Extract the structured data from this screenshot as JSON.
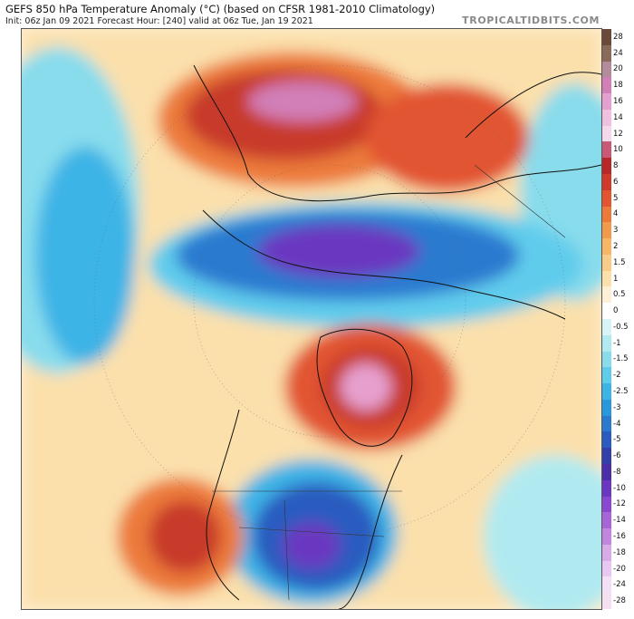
{
  "header": {
    "title": "GEFS 850 hPa Temperature Anomaly (°C) (based on CFSR 1981-2010 Climatology)",
    "subtitle": "Init: 06z Jan 09 2021   Forecast Hour: [240]   valid at 06z Tue, Jan 19 2021",
    "brand": "TROPICALTIDBITS.COM"
  },
  "colorbar": {
    "labels": [
      "28",
      "24",
      "20",
      "18",
      "16",
      "14",
      "12",
      "10",
      "8",
      "6",
      "5",
      "4",
      "3",
      "2",
      "1.5",
      "1",
      "0.5",
      "0",
      "-0.5",
      "-1",
      "-1.5",
      "-2",
      "-2.5",
      "-3",
      "-4",
      "-5",
      "-6",
      "-8",
      "-10",
      "-12",
      "-14",
      "-16",
      "-18",
      "-20",
      "-24",
      "-28"
    ],
    "colors": [
      "#6b4a3a",
      "#8a6a58",
      "#b38b9a",
      "#d27fb8",
      "#e6a0cf",
      "#f0c0e0",
      "#f4d8ec",
      "#c85a78",
      "#b82828",
      "#d03a2a",
      "#e25530",
      "#ec7a3a",
      "#f29a4c",
      "#f6b666",
      "#f8cc88",
      "#fbe0ac",
      "#fdf0d6",
      "#ffffff",
      "#d8f4f4",
      "#b0eaf0",
      "#88dcec",
      "#60ccec",
      "#3cb4e6",
      "#2a98dc",
      "#2a7ad0",
      "#2a5cc0",
      "#3240a8",
      "#4a2fa8",
      "#6a38c0",
      "#8a48d0",
      "#a864d8",
      "#c286e0",
      "#d8aae8",
      "#e8c8f0",
      "#f4e0f6",
      "#f4e0f0"
    ]
  },
  "map_layers": {
    "anomaly_colors": {
      "strong_cold": "#6a38c0",
      "cold": "#2a5cc0",
      "cool": "#3cb4e6",
      "slight_cool": "#88dcec",
      "neutral": "#fdf0d6",
      "slight_warm": "#f8cc88",
      "warm": "#ec7a3a",
      "hot": "#c83a2a",
      "very_hot": "#d27fb8"
    }
  }
}
